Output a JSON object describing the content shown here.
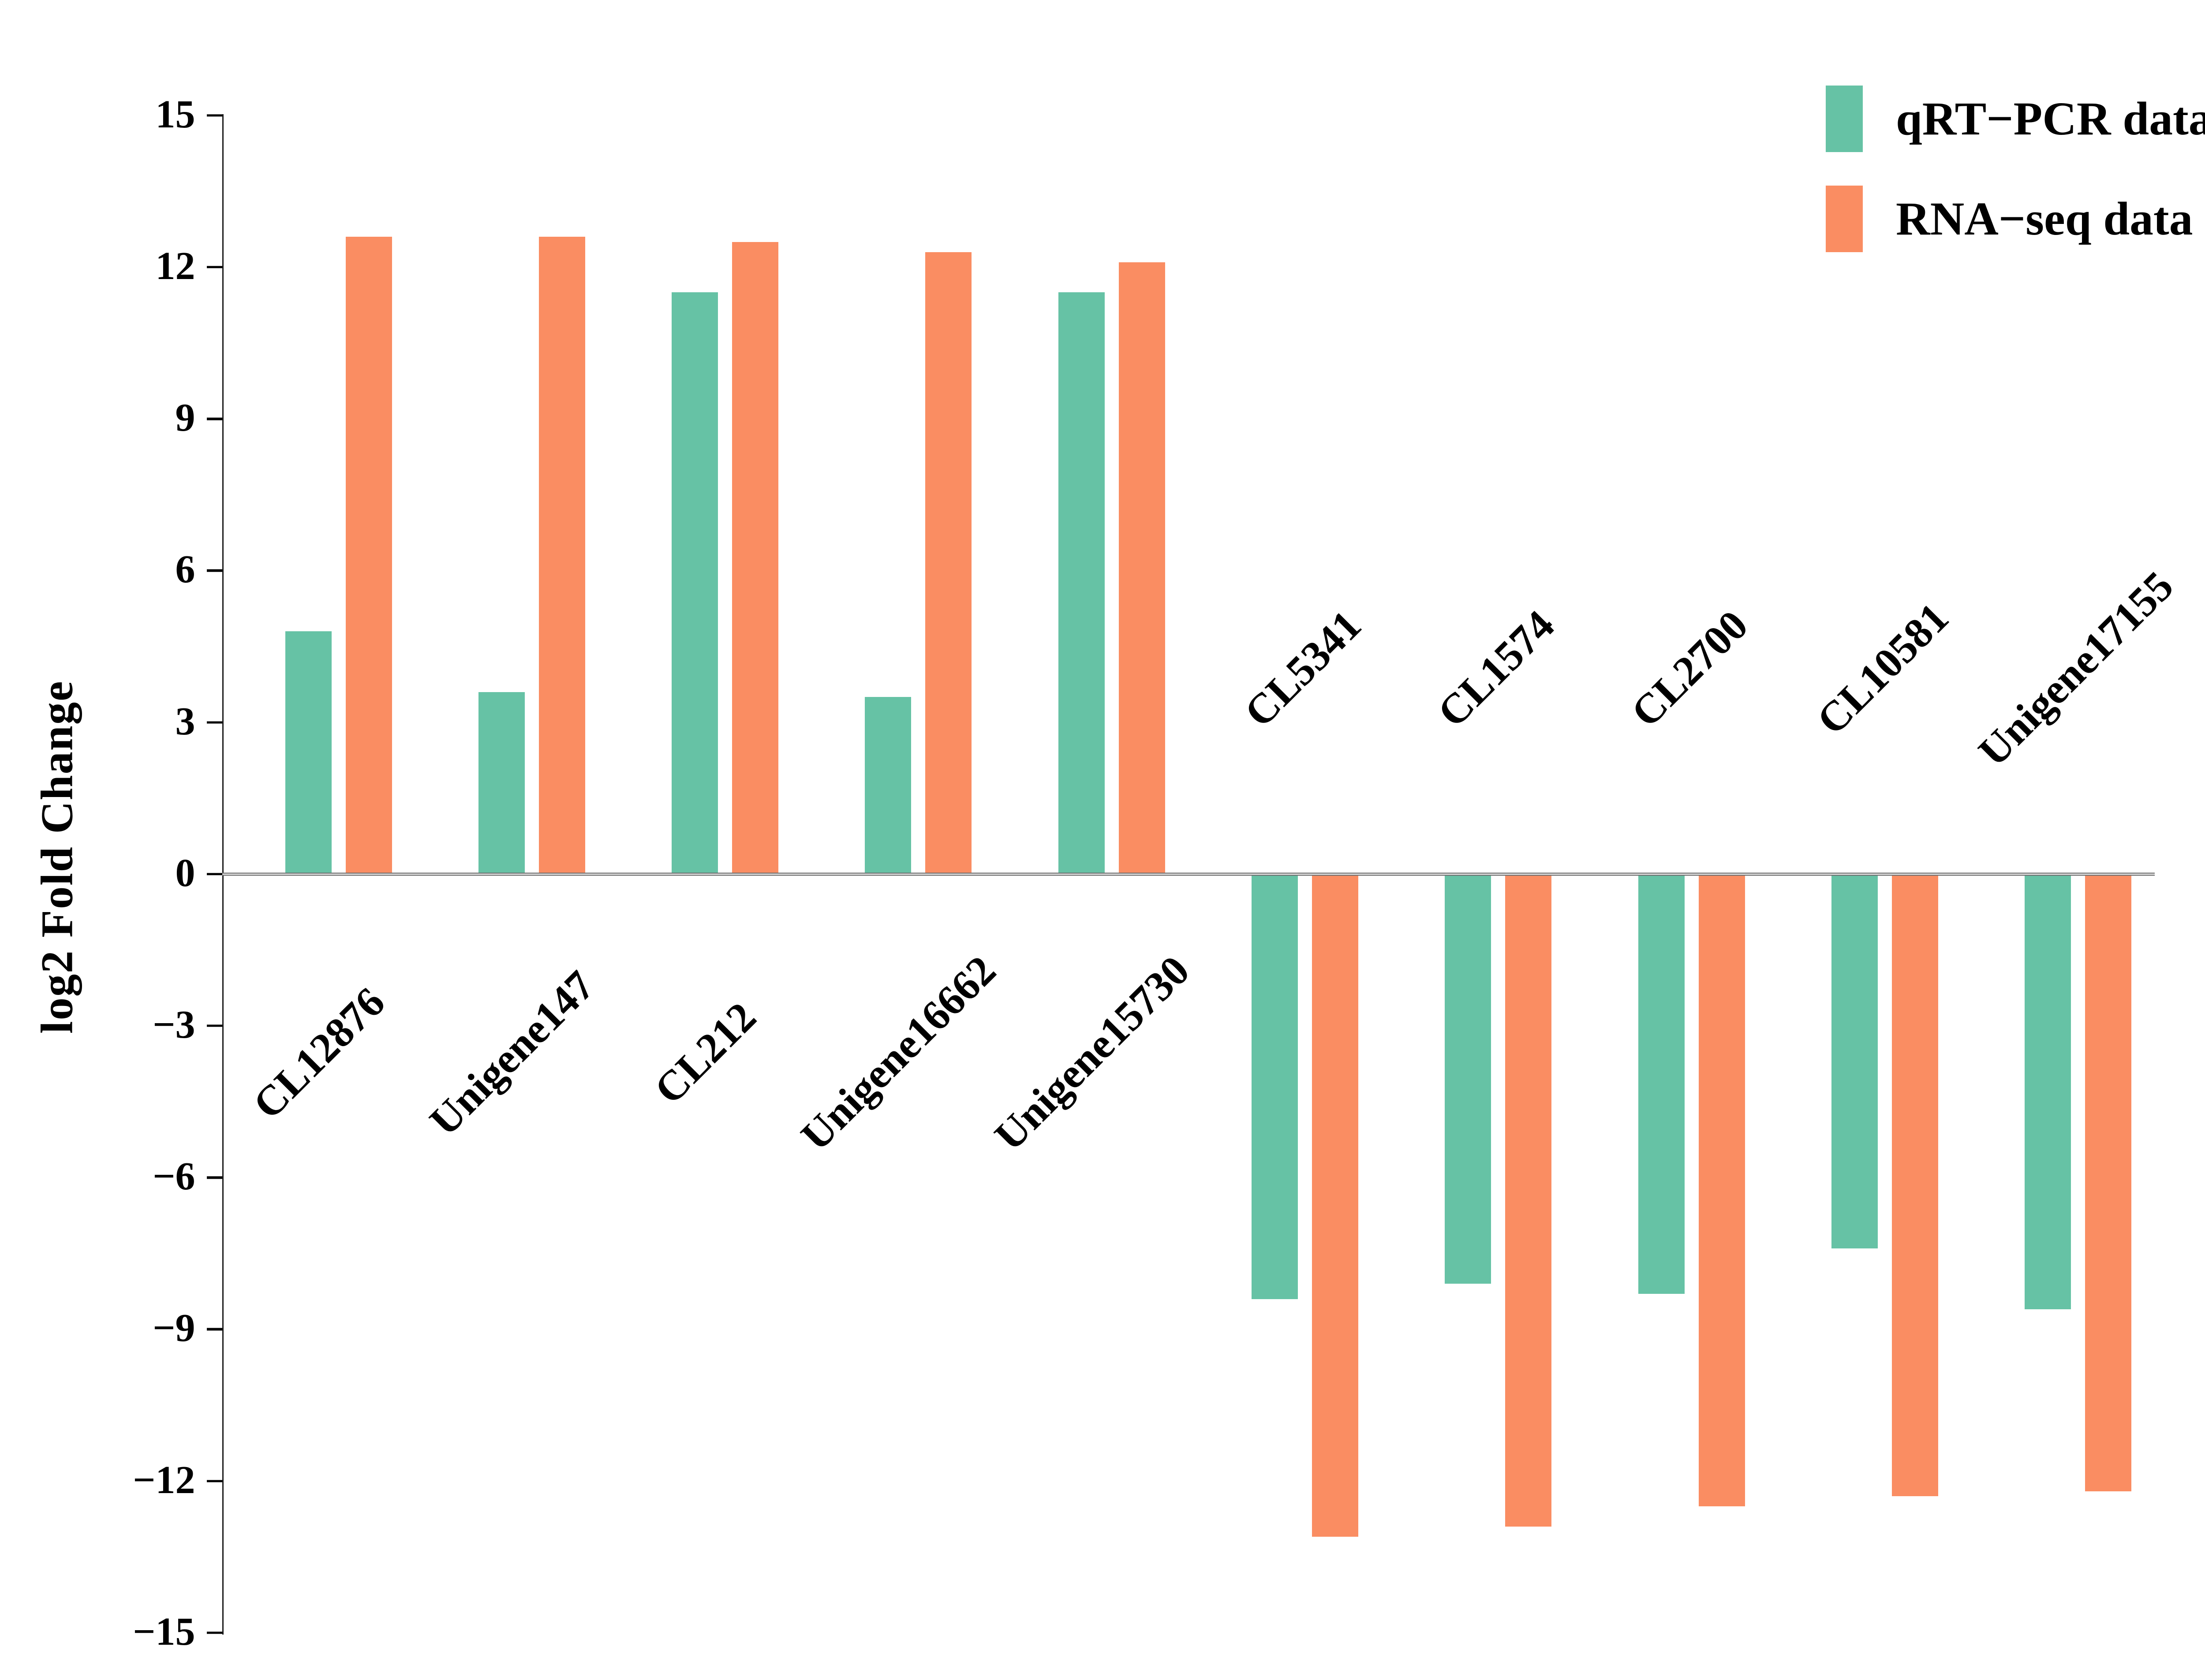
{
  "figure": {
    "background": "#ffffff",
    "y_axis_label": "log2 Fold Change",
    "legend": {
      "items": [
        {
          "label": "qRT−PCR data",
          "color": "#66c2a5"
        },
        {
          "label": "RNA−seq data",
          "color": "#fa8d62"
        }
      ]
    }
  },
  "chart_data": {
    "type": "bar",
    "title": "",
    "xlabel": "",
    "ylabel": "log2 Fold Change",
    "ylim": [
      -15,
      15
    ],
    "yticks": [
      15,
      12,
      9,
      6,
      3,
      0,
      -3,
      -6,
      -9,
      -12,
      -15
    ],
    "grid": false,
    "legend_position": "upper right",
    "categories": [
      "CL12876",
      "Unigene147",
      "CL212",
      "Unigene16662",
      "Unigene15730",
      "CL5341",
      "CL1574",
      "CL2700",
      "CL10581",
      "Unigene17155"
    ],
    "series": [
      {
        "name": "qRT−PCR data",
        "key": "qrt-pcr",
        "color": "#66c2a5",
        "values": [
          4.8,
          3.6,
          11.5,
          3.5,
          11.5,
          -8.4,
          -8.1,
          -8.3,
          -7.4,
          -8.6
        ]
      },
      {
        "name": "RNA−seq data",
        "key": "rna-seq",
        "color": "#fa8d62",
        "values": [
          12.6,
          12.6,
          12.5,
          12.3,
          12.1,
          -13.1,
          -12.9,
          -12.5,
          -12.3,
          -12.2
        ]
      }
    ]
  }
}
